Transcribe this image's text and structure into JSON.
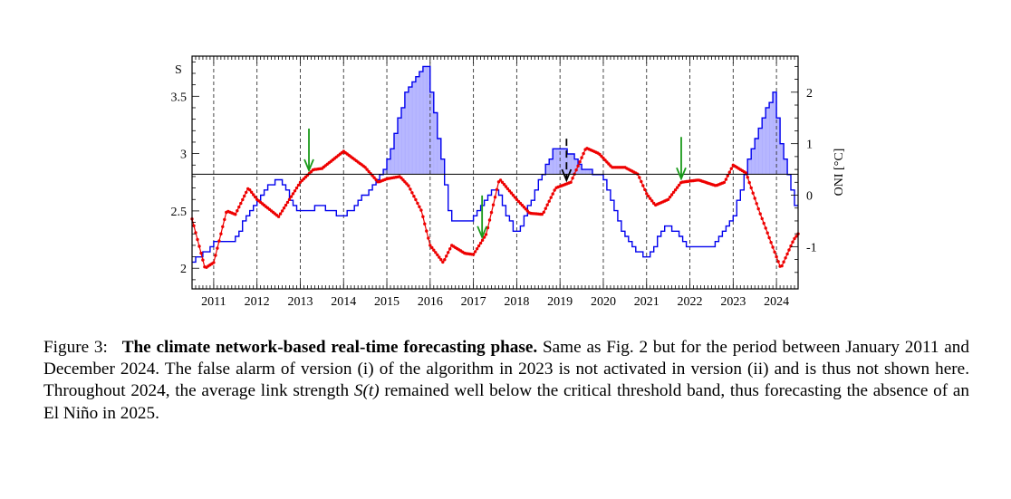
{
  "chart_data": {
    "type": "line",
    "x_range": [
      2010.5,
      2024.5
    ],
    "y_left": {
      "label": "S",
      "range": [
        1.82,
        3.85
      ],
      "ticks": [
        "2",
        "2.5",
        "3",
        "3.5"
      ]
    },
    "y_right": {
      "label": "ONI [°C]",
      "range": [
        -1.82,
        2.7
      ],
      "ticks": [
        "-1",
        "0",
        "1",
        "2"
      ]
    },
    "year_labels": [
      "2011",
      "2012",
      "2013",
      "2014",
      "2015",
      "2016",
      "2017",
      "2018",
      "2019",
      "2020",
      "2021",
      "2022",
      "2023",
      "2024"
    ],
    "threshold_S": 2.82,
    "dashed_year_boundaries": [
      2011,
      2012,
      2013,
      2014,
      2015,
      2016,
      2017,
      2018,
      2019,
      2020,
      2021,
      2022,
      2023,
      2024
    ],
    "forecast_arrows": [
      {
        "x": 2013.2,
        "type": "correct",
        "color": "#1a9a1a"
      },
      {
        "x": 2017.2,
        "type": "correct",
        "color": "#1a9a1a"
      },
      {
        "x": 2021.8,
        "type": "correct",
        "color": "#1a9a1a"
      },
      {
        "x": 2019.15,
        "type": "false alarm",
        "color": "#000000"
      }
    ],
    "series": [
      {
        "id": "oni",
        "color": "#0000ee",
        "shade_color": "#9999ff",
        "points": [
          [
            2010.5,
            -1.35
          ],
          [
            2011.0,
            -0.95
          ],
          [
            2011.5,
            -0.85
          ],
          [
            2012.0,
            -0.1
          ],
          [
            2012.5,
            0.35
          ],
          [
            2013.0,
            -0.35
          ],
          [
            2013.5,
            -0.2
          ],
          [
            2014.0,
            -0.45
          ],
          [
            2014.5,
            0.0
          ],
          [
            2015.0,
            0.55
          ],
          [
            2015.5,
            2.1
          ],
          [
            2015.95,
            2.55
          ],
          [
            2016.5,
            -0.5
          ],
          [
            2017.0,
            -0.5
          ],
          [
            2017.5,
            0.2
          ],
          [
            2018.0,
            -0.8
          ],
          [
            2018.5,
            0.2
          ],
          [
            2018.9,
            0.95
          ],
          [
            2019.25,
            0.8
          ],
          [
            2019.5,
            0.55
          ],
          [
            2020.0,
            0.35
          ],
          [
            2020.5,
            -0.8
          ],
          [
            2021.0,
            -1.25
          ],
          [
            2021.5,
            -0.55
          ],
          [
            2022.0,
            -1.0
          ],
          [
            2022.5,
            -1.0
          ],
          [
            2023.0,
            -0.5
          ],
          [
            2023.5,
            1.05
          ],
          [
            2023.95,
            2.0
          ],
          [
            2024.1,
            1.1
          ],
          [
            2024.5,
            -0.3
          ]
        ]
      },
      {
        "id": "link-strength",
        "color": "#ee0000",
        "points": [
          [
            2010.5,
            2.43
          ],
          [
            2010.8,
            2.0
          ],
          [
            2011.0,
            2.05
          ],
          [
            2011.3,
            2.5
          ],
          [
            2011.5,
            2.47
          ],
          [
            2011.8,
            2.7
          ],
          [
            2012.0,
            2.6
          ],
          [
            2012.5,
            2.45
          ],
          [
            2013.0,
            2.75
          ],
          [
            2013.3,
            2.86
          ],
          [
            2013.5,
            2.87
          ],
          [
            2014.0,
            3.02
          ],
          [
            2014.5,
            2.88
          ],
          [
            2014.8,
            2.75
          ],
          [
            2015.0,
            2.78
          ],
          [
            2015.3,
            2.8
          ],
          [
            2015.5,
            2.72
          ],
          [
            2015.8,
            2.5
          ],
          [
            2016.0,
            2.2
          ],
          [
            2016.3,
            2.05
          ],
          [
            2016.5,
            2.2
          ],
          [
            2016.8,
            2.13
          ],
          [
            2017.0,
            2.12
          ],
          [
            2017.3,
            2.3
          ],
          [
            2017.6,
            2.78
          ],
          [
            2018.0,
            2.6
          ],
          [
            2018.3,
            2.48
          ],
          [
            2018.6,
            2.47
          ],
          [
            2018.9,
            2.7
          ],
          [
            2019.25,
            2.75
          ],
          [
            2019.6,
            3.05
          ],
          [
            2019.9,
            3.0
          ],
          [
            2020.2,
            2.88
          ],
          [
            2020.5,
            2.88
          ],
          [
            2020.8,
            2.82
          ],
          [
            2021.0,
            2.65
          ],
          [
            2021.2,
            2.55
          ],
          [
            2021.5,
            2.6
          ],
          [
            2021.8,
            2.75
          ],
          [
            2022.2,
            2.77
          ],
          [
            2022.6,
            2.72
          ],
          [
            2022.8,
            2.75
          ],
          [
            2023.0,
            2.9
          ],
          [
            2023.3,
            2.83
          ],
          [
            2023.6,
            2.5
          ],
          [
            2023.9,
            2.2
          ],
          [
            2024.1,
            2.0
          ],
          [
            2024.4,
            2.25
          ],
          [
            2024.8,
            2.45
          ]
        ]
      }
    ]
  },
  "caption": {
    "label": "Figure 3:",
    "title": "The climate network-based real-time forecasting phase.",
    "text_before_s": " Same as Fig. 2 but for the period between January 2011 and December 2024. The false alarm of version (i) of the algorithm in 2023 is not activated in version (ii) and is thus not shown here. Throughout 2024, the average link strength ",
    "s_symbol": "S(t)",
    "text_after_s": " remained well below the critical threshold band, thus forecasting the absence of an El Niño in 2025."
  }
}
